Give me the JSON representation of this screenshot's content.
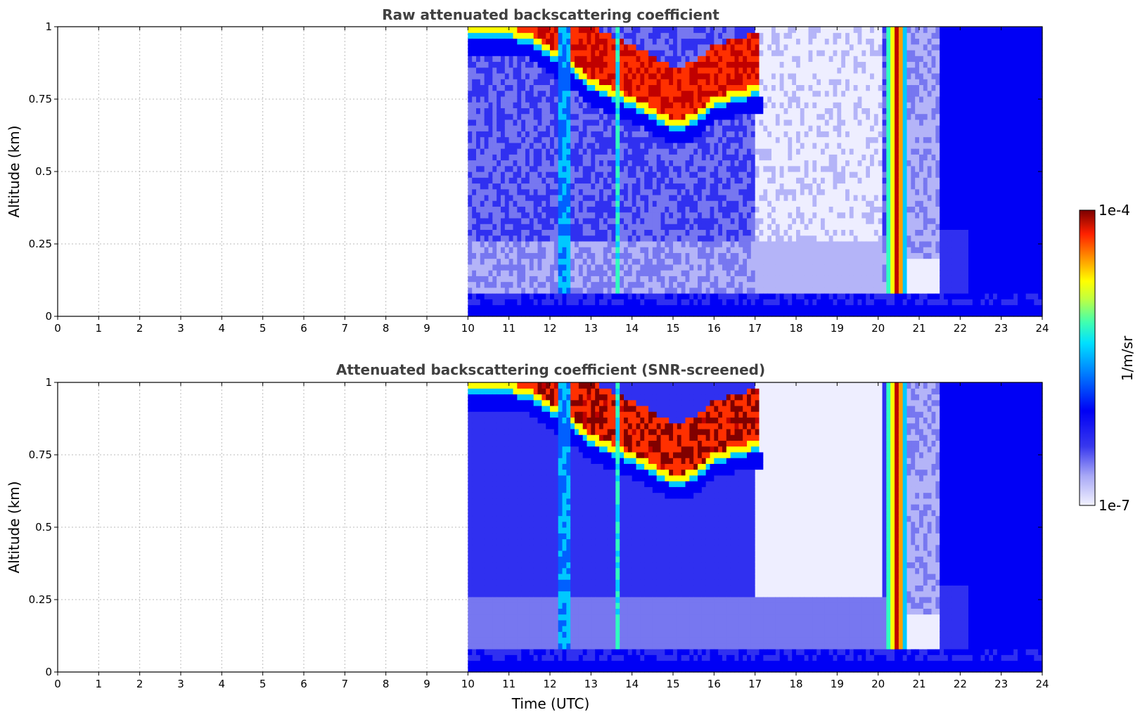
{
  "chart_data": [
    {
      "type": "heatmap",
      "title": "Raw attenuated backscattering coefficient",
      "xlabel": "",
      "ylabel": "Altitude (km)",
      "xlim": [
        0,
        24
      ],
      "ylim": [
        0,
        1
      ],
      "x_ticks": [
        "0",
        "1",
        "2",
        "3",
        "4",
        "5",
        "6",
        "7",
        "8",
        "9",
        "10",
        "11",
        "12",
        "13",
        "14",
        "15",
        "16",
        "17",
        "18",
        "19",
        "20",
        "21",
        "22",
        "23",
        "24"
      ],
      "y_ticks": [
        "0",
        "0.25",
        "0.5",
        "0.75",
        "1"
      ],
      "grid": true,
      "data_start_hour": 10,
      "data_end_hour": 24,
      "features": {
        "cloud_layer": [
          [
            10.5,
            0.96
          ],
          [
            11,
            0.96
          ],
          [
            11.5,
            0.94
          ],
          [
            12.5,
            0.84
          ],
          [
            13,
            0.78
          ],
          [
            13.5,
            0.75
          ],
          [
            14,
            0.72
          ],
          [
            14.5,
            0.68
          ],
          [
            15,
            0.64
          ],
          [
            15.5,
            0.66
          ],
          [
            16,
            0.72
          ],
          [
            16.5,
            0.74
          ],
          [
            17,
            0.76
          ]
        ],
        "vertical_columns": [
          {
            "hour": 12.3,
            "level": "high"
          },
          {
            "hour": 13.6,
            "level": "high"
          },
          {
            "hour": 20.4,
            "level": "very high"
          }
        ],
        "near_surface_band_km": [
          0,
          0.09
        ],
        "clear_after_hour": 21.5
      }
    },
    {
      "type": "heatmap",
      "title": "Attenuated backscattering coefficient (SNR-screened)",
      "xlabel": "Time (UTC)",
      "ylabel": "Altitude (km)",
      "xlim": [
        0,
        24
      ],
      "ylim": [
        0,
        1
      ],
      "x_ticks": [
        "0",
        "1",
        "2",
        "3",
        "4",
        "5",
        "6",
        "7",
        "8",
        "9",
        "10",
        "11",
        "12",
        "13",
        "14",
        "15",
        "16",
        "17",
        "18",
        "19",
        "20",
        "21",
        "22",
        "23",
        "24"
      ],
      "y_ticks": [
        "0",
        "0.25",
        "0.5",
        "0.75",
        "1"
      ],
      "grid": true,
      "data_start_hour": 10,
      "data_end_hour": 24,
      "screened": true
    }
  ],
  "colorbar": {
    "label": "1/m/sr",
    "max_label": "1e-4",
    "min_label": "1e-7",
    "colormap": [
      "#eeeeff",
      "#b4b4f8",
      "#7777f0",
      "#3030f0",
      "#0000f5",
      "#0060ff",
      "#00c8ff",
      "#30ffc0",
      "#a0ff50",
      "#ffff00",
      "#ffa000",
      "#ff3000",
      "#c00000",
      "#800000"
    ]
  }
}
